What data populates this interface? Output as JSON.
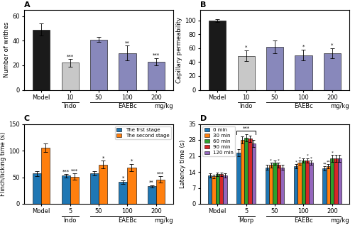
{
  "chart_data": [
    {
      "type": "bar",
      "title": "A",
      "ylabel": "Number of writhes",
      "xlabel": "mg/kg",
      "categories": [
        "Model",
        "10",
        "50",
        "100",
        "200"
      ],
      "values": [
        49,
        22,
        41,
        30,
        23
      ],
      "errors": [
        5,
        3,
        2,
        6,
        3
      ],
      "colors": [
        "#1a1a1a",
        "#c8c8c8",
        "#8888bb",
        "#8888bb",
        "#8888bb"
      ],
      "annotations": [
        null,
        "***",
        null,
        "**",
        "***"
      ],
      "groups": [
        {
          "label": "Indo",
          "categories": [
            "10"
          ]
        },
        {
          "label": "EAEBc",
          "categories": [
            "50",
            "100",
            "200"
          ]
        }
      ],
      "ylim": [
        0,
        65
      ],
      "yticks": [
        0,
        20,
        40,
        60
      ]
    },
    {
      "type": "bar",
      "title": "B",
      "ylabel": "Capillary permeability",
      "xlabel": "mg/kg",
      "categories": [
        "Model",
        "10",
        "50",
        "100",
        "200"
      ],
      "values": [
        100,
        49,
        62,
        50,
        53
      ],
      "errors": [
        2,
        8,
        9,
        8,
        7
      ],
      "colors": [
        "#1a1a1a",
        "#c8c8c8",
        "#8888bb",
        "#8888bb",
        "#8888bb"
      ],
      "annotations": [
        null,
        "*",
        null,
        "*",
        "*"
      ],
      "groups": [
        {
          "label": "Indo",
          "categories": [
            "10"
          ]
        },
        {
          "label": "EAEBc",
          "categories": [
            "50",
            "100",
            "200"
          ]
        }
      ],
      "ylim": [
        0,
        115
      ],
      "yticks": [
        0,
        20,
        40,
        60,
        80,
        100
      ]
    },
    {
      "type": "bar",
      "title": "C",
      "ylabel": "Flinch/licking time (s)",
      "xlabel": "mg/kg",
      "categories": [
        "Model",
        "5",
        "50",
        "100",
        "200"
      ],
      "series": [
        {
          "name": "The frst stage",
          "values": [
            57,
            53,
            57,
            41,
            33
          ],
          "errors": [
            5,
            3,
            4,
            3,
            2
          ],
          "annotations": [
            null,
            "***",
            null,
            "*",
            "**"
          ]
        },
        {
          "name": "The second stage",
          "values": [
            106,
            51,
            74,
            68,
            46
          ],
          "errors": [
            8,
            6,
            7,
            7,
            6
          ],
          "annotations": [
            null,
            "***",
            "*",
            "*",
            "***"
          ]
        }
      ],
      "groups": [
        {
          "label": "Indo",
          "categories": [
            "5"
          ]
        },
        {
          "label": "EAEBc",
          "categories": [
            "50",
            "100",
            "200"
          ]
        }
      ],
      "legend": "upper right",
      "ylim": [
        0,
        150
      ],
      "yticks": [
        0,
        50,
        100,
        150
      ]
    },
    {
      "type": "bar",
      "title": "D",
      "ylabel": "Latency time (s)",
      "xlabel": "mg/kg",
      "categories": [
        "Model",
        "5",
        "50",
        "100",
        "200"
      ],
      "series": [
        {
          "name": "0 min",
          "values": [
            12.5,
            22.5,
            16,
            16.5,
            15.5
          ],
          "errors": [
            1.0,
            1.5,
            1.0,
            1.0,
            1.0
          ],
          "annotations": [
            null,
            null,
            null,
            "*",
            "**"
          ]
        },
        {
          "name": "30 min",
          "values": [
            12,
            28,
            17,
            18,
            16.5
          ],
          "errors": [
            0.8,
            1.5,
            1.0,
            1.0,
            1.0
          ],
          "annotations": [
            null,
            null,
            "*",
            "*",
            "**"
          ]
        },
        {
          "name": "60 min",
          "values": [
            13,
            29,
            18,
            19,
            20
          ],
          "errors": [
            0.8,
            1.5,
            1.0,
            1.0,
            1.5
          ],
          "annotations": [
            null,
            null,
            null,
            null,
            "*"
          ]
        },
        {
          "name": "90 min",
          "values": [
            13,
            28.5,
            17,
            19,
            20
          ],
          "errors": [
            0.8,
            1.5,
            1.0,
            1.0,
            1.5
          ],
          "annotations": [
            null,
            null,
            "*",
            "*",
            null
          ]
        },
        {
          "name": "120 min",
          "values": [
            12.5,
            26.5,
            16,
            18,
            20
          ],
          "errors": [
            1.0,
            1.5,
            1.0,
            1.0,
            1.5
          ],
          "annotations": [
            null,
            null,
            null,
            "*",
            null
          ]
        }
      ],
      "group_annotations": [
        {
          "category": "5",
          "text": "***"
        }
      ],
      "groups": [
        {
          "label": "Morp",
          "categories": [
            "5"
          ]
        },
        {
          "label": "EAEBc",
          "categories": [
            "50",
            "100",
            "200"
          ]
        }
      ],
      "legend": "upper left",
      "ylim": [
        0,
        35
      ],
      "yticks": [
        0,
        7,
        14,
        21,
        28,
        35
      ]
    }
  ]
}
